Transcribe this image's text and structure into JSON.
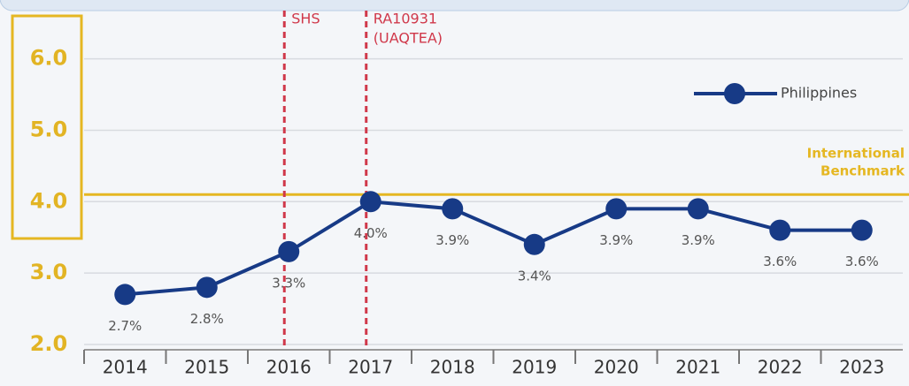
{
  "chart_data": {
    "type": "line",
    "categories": [
      "2014",
      "2015",
      "2016",
      "2017",
      "2018",
      "2019",
      "2020",
      "2021",
      "2022",
      "2023"
    ],
    "series": [
      {
        "name": "Philippines",
        "color": "#173a86",
        "values": [
          2.7,
          2.8,
          3.3,
          4.0,
          3.9,
          3.4,
          3.9,
          3.9,
          3.6,
          3.6
        ],
        "value_labels": [
          "2.7%",
          "2.8%",
          "3.3%",
          "4.0%",
          "3.9%",
          "3.4%",
          "3.9%",
          "3.9%",
          "3.6%",
          "3.6%"
        ]
      }
    ],
    "ylim": [
      2.0,
      6.7
    ],
    "yticks": [
      {
        "value": 2,
        "label": "2.0"
      },
      {
        "value": 3,
        "label": "3.0"
      },
      {
        "value": 4,
        "label": "4.0"
      },
      {
        "value": 5,
        "label": "5.0"
      },
      {
        "value": 6,
        "label": "6.0"
      }
    ],
    "grid": true,
    "legend": "upper right",
    "benchmark": {
      "value": 4.1,
      "label_lines": [
        "International",
        "Benchmark"
      ],
      "color": "#e5b722"
    },
    "annotations": [
      {
        "x": "2016",
        "lines": [
          "SHS"
        ],
        "color": "#d0384a"
      },
      {
        "x": "2017",
        "lines": [
          "RA10931",
          "(UAQTEA)"
        ],
        "color": "#d0384a"
      }
    ]
  }
}
